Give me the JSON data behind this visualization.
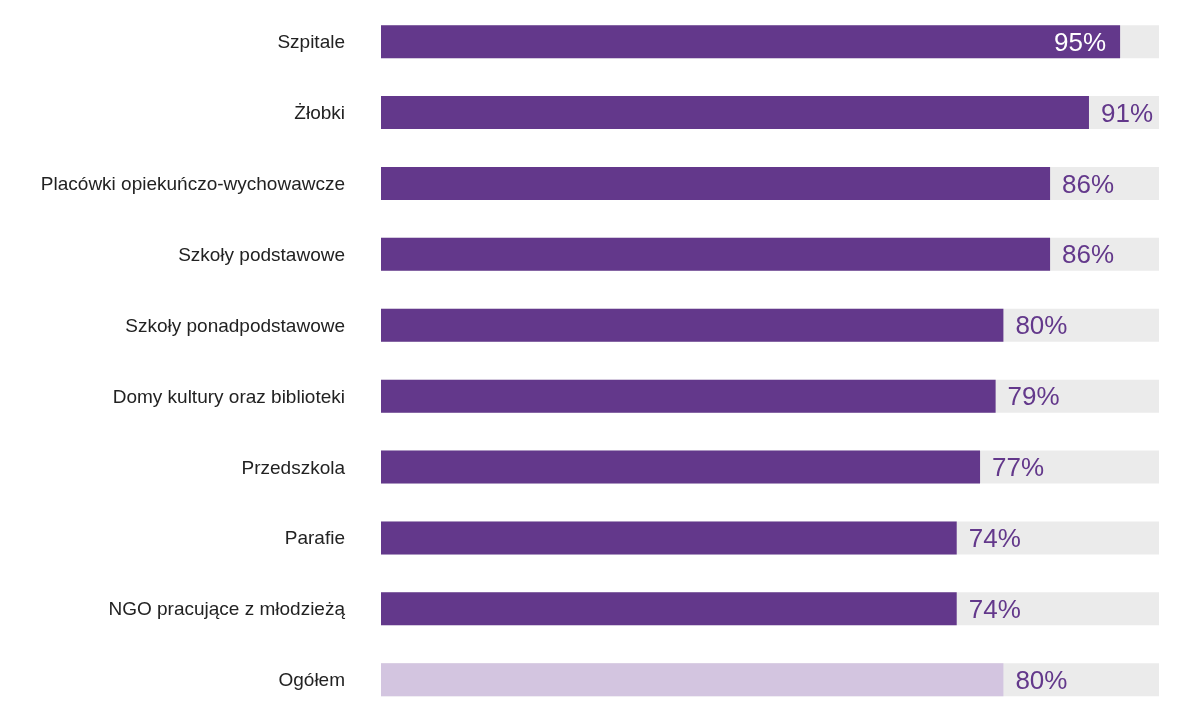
{
  "chart_data": {
    "type": "bar",
    "orientation": "horizontal",
    "categories": [
      "Szpitale",
      "Żłobki",
      "Placówki opiekuńczo-wychowawcze",
      "Szkoły podstawowe",
      "Szkoły ponadpodstawowe",
      "Domy kultury oraz biblioteki",
      "Przedszkola",
      "Parafie",
      "NGO pracujące z młodzieżą",
      "Ogółem"
    ],
    "values": [
      95,
      91,
      86,
      86,
      80,
      79,
      77,
      74,
      74,
      80
    ],
    "colors": [
      "#63388b",
      "#63388b",
      "#63388b",
      "#63388b",
      "#63388b",
      "#63388b",
      "#63388b",
      "#63388b",
      "#63388b",
      "#d3c5e0"
    ],
    "value_labels": [
      "95%",
      "91%",
      "86%",
      "86%",
      "80%",
      "79%",
      "77%",
      "74%",
      "74%",
      "80%"
    ],
    "xlim": [
      0,
      100
    ],
    "tick_labels": "y"
  }
}
